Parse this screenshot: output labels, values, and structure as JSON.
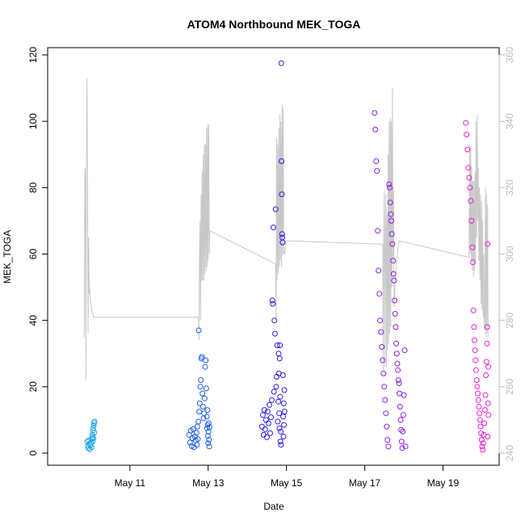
{
  "chart_data": {
    "type": "scatter",
    "title": "ATOM4 Northbound MEK_TOGA",
    "xlabel": "Date",
    "ylabel": "MEK_TOGA",
    "xlim": [
      "2019-05-09T04:00",
      "2019-05-20T04:00"
    ],
    "ylim": [
      0,
      120
    ],
    "y_ticks": [
      0,
      20,
      40,
      60,
      80,
      100,
      120
    ],
    "y2lim": [
      240,
      360
    ],
    "y2_ticks": [
      240,
      260,
      280,
      300,
      320,
      340,
      360
    ],
    "x_ticks": [
      {
        "value": "2019-05-11",
        "label": "May 11"
      },
      {
        "value": "2019-05-13",
        "label": "May 13"
      },
      {
        "value": "2019-05-15",
        "label": "May 15"
      },
      {
        "value": "2019-05-17",
        "label": "May 17"
      },
      {
        "value": "2019-05-19",
        "label": "May 19"
      }
    ],
    "grid": false,
    "legend": "none",
    "colors": {
      "may10": "#1ea7e8",
      "may12": "#1a60e8",
      "may14": "#2a1ee6",
      "may17": "#8a1de6",
      "may19": "#ee1ed6",
      "line": "#c8c8c8",
      "right_axis": "#bdbdbd"
    },
    "series": [
      {
        "group": "may10",
        "x": [
          "2019-05-09T21:50",
          "2019-05-09T22:10",
          "2019-05-09T22:30",
          "2019-05-09T22:50",
          "2019-05-09T23:10",
          "2019-05-09T23:30",
          "2019-05-09T23:50",
          "2019-05-10T00:10",
          "2019-05-10T00:30",
          "2019-05-10T00:45",
          "2019-05-10T00:50",
          "2019-05-10T01:00",
          "2019-05-10T01:10",
          "2019-05-10T01:20",
          "2019-05-10T01:30",
          "2019-05-10T01:40",
          "2019-05-10T01:50",
          "2019-05-10T02:00",
          "2019-05-10T02:10",
          "2019-05-10T02:20"
        ],
        "y": [
          3.5,
          2.2,
          1.5,
          3.8,
          2.8,
          1.2,
          2.4,
          3.1,
          1.8,
          4.2,
          4.8,
          5.5,
          3.5,
          6.8,
          7.5,
          4.5,
          8.4,
          9.1,
          6.2,
          9.5
        ]
      },
      {
        "group": "may12",
        "x": [
          "2019-05-12T12:20",
          "2019-05-12T12:50",
          "2019-05-12T13:20",
          "2019-05-12T13:50",
          "2019-05-12T14:20",
          "2019-05-12T14:50",
          "2019-05-12T15:20",
          "2019-05-12T15:50",
          "2019-05-12T16:20",
          "2019-05-12T16:50",
          "2019-05-12T17:10",
          "2019-05-12T17:20",
          "2019-05-12T17:40",
          "2019-05-12T18:00",
          "2019-05-12T18:10",
          "2019-05-12T18:30",
          "2019-05-12T18:50",
          "2019-05-12T19:10",
          "2019-05-12T19:30",
          "2019-05-12T19:50",
          "2019-05-12T20:10",
          "2019-05-12T20:30",
          "2019-05-12T20:50",
          "2019-05-12T21:10",
          "2019-05-12T21:30",
          "2019-05-12T21:50",
          "2019-05-12T22:10",
          "2019-05-12T22:30",
          "2019-05-12T22:50",
          "2019-05-12T23:10",
          "2019-05-12T23:20",
          "2019-05-12T23:30",
          "2019-05-12T23:40",
          "2019-05-12T23:50",
          "2019-05-13T00:00",
          "2019-05-13T00:10",
          "2019-05-13T00:20",
          "2019-05-13T00:30",
          "2019-05-13T00:40",
          "2019-05-13T00:50"
        ],
        "y": [
          5.5,
          3.2,
          6.8,
          2.1,
          4.5,
          7.2,
          1.8,
          5.0,
          3.8,
          6.1,
          2.5,
          8.0,
          4.2,
          9.5,
          37.0,
          12.5,
          15.0,
          20.0,
          22.0,
          28.5,
          29.0,
          18.0,
          14.0,
          10.5,
          12.0,
          16.5,
          26.0,
          28.0,
          19.5,
          11.0,
          7.5,
          13.0,
          8.5,
          5.2,
          3.0,
          6.5,
          9.0,
          4.0,
          2.0,
          7.8
        ]
      },
      {
        "group": "may14",
        "x": [
          "2019-05-14T09:00",
          "2019-05-14T09:30",
          "2019-05-14T10:00",
          "2019-05-14T10:30",
          "2019-05-14T11:00",
          "2019-05-14T11:30",
          "2019-05-14T12:00",
          "2019-05-14T12:30",
          "2019-05-14T13:00",
          "2019-05-14T13:30",
          "2019-05-14T14:00",
          "2019-05-14T14:30",
          "2019-05-14T15:00",
          "2019-05-14T15:20",
          "2019-05-14T15:40",
          "2019-05-14T16:00",
          "2019-05-14T16:20",
          "2019-05-14T16:40",
          "2019-05-14T17:00",
          "2019-05-14T17:20",
          "2019-05-14T17:40",
          "2019-05-14T18:00",
          "2019-05-14T18:20",
          "2019-05-14T18:40",
          "2019-05-14T19:00",
          "2019-05-14T19:10",
          "2019-05-14T19:20",
          "2019-05-14T19:30",
          "2019-05-14T19:40",
          "2019-05-14T19:50",
          "2019-05-14T20:00",
          "2019-05-14T20:10",
          "2019-05-14T20:20",
          "2019-05-14T20:30",
          "2019-05-14T20:40",
          "2019-05-14T20:50",
          "2019-05-14T21:00",
          "2019-05-14T21:10",
          "2019-05-14T21:20",
          "2019-05-14T21:30",
          "2019-05-14T21:40",
          "2019-05-14T21:50",
          "2019-05-14T22:00",
          "2019-05-14T22:10",
          "2019-05-14T22:20",
          "2019-05-14T22:30",
          "2019-05-14T22:40",
          "2019-05-14T22:50"
        ],
        "y": [
          8.0,
          11.5,
          5.5,
          13.0,
          7.2,
          10.0,
          4.8,
          12.5,
          9.0,
          14.5,
          6.0,
          10.8,
          16.0,
          46.0,
          45.0,
          68.0,
          18.5,
          40.0,
          36.0,
          73.5,
          20.0,
          23.0,
          32.5,
          9.5,
          15.5,
          30.0,
          24.0,
          12.0,
          7.5,
          28.5,
          32.5,
          17.0,
          3.5,
          6.5,
          2.5,
          117.5,
          88.0,
          78.0,
          66.0,
          65.0,
          63.5,
          23.5,
          11.0,
          5.0,
          15.0,
          8.5,
          19.0,
          12.5
        ]
      },
      {
        "group": "may17",
        "x": [
          "2019-05-17T06:00",
          "2019-05-17T06:30",
          "2019-05-17T07:00",
          "2019-05-17T07:30",
          "2019-05-17T08:00",
          "2019-05-17T08:30",
          "2019-05-17T09:00",
          "2019-05-17T09:30",
          "2019-05-17T10:00",
          "2019-05-17T10:30",
          "2019-05-17T11:00",
          "2019-05-17T11:30",
          "2019-05-17T12:00",
          "2019-05-17T12:30",
          "2019-05-17T13:00",
          "2019-05-17T13:30",
          "2019-05-17T14:00",
          "2019-05-17T14:30",
          "2019-05-17T15:00",
          "2019-05-17T15:20",
          "2019-05-17T15:40",
          "2019-05-17T16:00",
          "2019-05-17T16:20",
          "2019-05-17T16:40",
          "2019-05-17T17:00",
          "2019-05-17T17:20",
          "2019-05-17T17:40",
          "2019-05-17T18:00",
          "2019-05-17T18:20",
          "2019-05-17T18:40",
          "2019-05-17T19:00",
          "2019-05-17T19:20",
          "2019-05-17T19:40",
          "2019-05-17T20:00",
          "2019-05-17T20:20",
          "2019-05-17T20:40",
          "2019-05-17T21:00",
          "2019-05-17T21:20",
          "2019-05-17T21:40",
          "2019-05-17T22:00",
          "2019-05-17T22:20",
          "2019-05-17T22:40",
          "2019-05-17T23:00",
          "2019-05-17T23:20",
          "2019-05-17T23:40",
          "2019-05-18T00:00",
          "2019-05-18T00:30",
          "2019-05-18T01:00"
        ],
        "y": [
          102.5,
          97.5,
          88.0,
          85.0,
          67.0,
          55.0,
          48.0,
          40.0,
          36.5,
          32.0,
          28.0,
          24.0,
          20.0,
          16.0,
          12.0,
          8.0,
          4.0,
          2.0,
          81.0,
          80.0,
          75.5,
          72.0,
          70.0,
          66.0,
          63.0,
          58.0,
          54.0,
          52.0,
          46.0,
          42.0,
          38.0,
          33.0,
          30.0,
          27.0,
          25.0,
          22.0,
          21.0,
          18.0,
          14.0,
          10.0,
          7.0,
          3.5,
          1.5,
          6.5,
          11.5,
          17.5,
          31.0,
          2.0
        ]
      },
      {
        "group": "may19",
        "x": [
          "2019-05-19T14:00",
          "2019-05-19T14:30",
          "2019-05-19T15:00",
          "2019-05-19T15:30",
          "2019-05-19T16:00",
          "2019-05-19T16:30",
          "2019-05-19T17:00",
          "2019-05-19T17:30",
          "2019-05-19T18:00",
          "2019-05-19T18:20",
          "2019-05-19T18:40",
          "2019-05-19T19:00",
          "2019-05-19T19:20",
          "2019-05-19T19:40",
          "2019-05-19T20:00",
          "2019-05-19T20:20",
          "2019-05-19T20:40",
          "2019-05-19T21:00",
          "2019-05-19T21:20",
          "2019-05-19T21:40",
          "2019-05-19T22:00",
          "2019-05-19T22:20",
          "2019-05-19T22:40",
          "2019-05-19T23:00",
          "2019-05-19T23:20",
          "2019-05-19T23:40",
          "2019-05-20T00:00",
          "2019-05-20T00:20",
          "2019-05-20T00:40",
          "2019-05-20T01:00",
          "2019-05-20T01:20",
          "2019-05-20T01:40",
          "2019-05-20T02:00",
          "2019-05-20T02:20",
          "2019-05-20T02:40",
          "2019-05-20T03:00",
          "2019-05-20T03:10",
          "2019-05-20T03:20",
          "2019-05-20T03:30",
          "2019-05-20T03:40",
          "2019-05-20T03:50",
          "2019-05-20T03:55"
        ],
        "y": [
          99.5,
          96.0,
          91.5,
          86.0,
          83.0,
          80.0,
          76.0,
          70.0,
          62.0,
          57.5,
          43.0,
          38.0,
          34.0,
          31.0,
          28.0,
          25.0,
          22.0,
          20.0,
          18.0,
          16.0,
          14.0,
          12.0,
          10.0,
          8.0,
          6.0,
          4.0,
          2.0,
          1.0,
          3.0,
          5.5,
          9.0,
          13.0,
          17.5,
          23.5,
          27.5,
          33.0,
          38.0,
          63.0,
          5.0,
          15.0,
          26.0,
          11.5
        ]
      }
    ],
    "line": {
      "axis": "right",
      "x": [
        "2019-05-09T20:00",
        "2019-05-09T20:20",
        "2019-05-09T20:40",
        "2019-05-09T21:00",
        "2019-05-09T21:20",
        "2019-05-09T21:40",
        "2019-05-09T22:00",
        "2019-05-09T22:20",
        "2019-05-09T22:40",
        "2019-05-09T23:00",
        "2019-05-09T23:20",
        "2019-05-09T23:40",
        "2019-05-10T00:00",
        "2019-05-10T00:20",
        "2019-05-10T00:40",
        "2019-05-10T01:00",
        "2019-05-10T01:20",
        "2019-05-10T01:40",
        "2019-05-12T18:00",
        "2019-05-12T18:10",
        "2019-05-12T18:20",
        "2019-05-12T18:40",
        "2019-05-12T19:00",
        "2019-05-12T19:20",
        "2019-05-12T19:40",
        "2019-05-12T20:00",
        "2019-05-12T20:20",
        "2019-05-12T20:40",
        "2019-05-12T21:00",
        "2019-05-12T21:20",
        "2019-05-12T21:40",
        "2019-05-12T22:00",
        "2019-05-12T22:20",
        "2019-05-12T22:40",
        "2019-05-12T23:00",
        "2019-05-12T23:20",
        "2019-05-12T23:40",
        "2019-05-13T00:00",
        "2019-05-13T00:20",
        "2019-05-13T00:40",
        "2019-05-13T01:00",
        "2019-05-14T17:20",
        "2019-05-14T17:40",
        "2019-05-14T18:00",
        "2019-05-14T18:20",
        "2019-05-14T18:40",
        "2019-05-14T19:00",
        "2019-05-14T19:20",
        "2019-05-14T19:40",
        "2019-05-14T20:00",
        "2019-05-14T20:20",
        "2019-05-14T20:40",
        "2019-05-14T21:00",
        "2019-05-14T21:20",
        "2019-05-14T21:40",
        "2019-05-14T22:00",
        "2019-05-14T22:20",
        "2019-05-14T22:40",
        "2019-05-14T23:00",
        "2019-05-14T23:20",
        "2019-05-14T23:40",
        "2019-05-17T11:00",
        "2019-05-17T11:20",
        "2019-05-17T11:40",
        "2019-05-17T12:00",
        "2019-05-17T12:20",
        "2019-05-17T12:40",
        "2019-05-17T13:00",
        "2019-05-17T13:20",
        "2019-05-17T13:40",
        "2019-05-17T14:00",
        "2019-05-17T14:20",
        "2019-05-17T14:40",
        "2019-05-17T15:00",
        "2019-05-17T15:20",
        "2019-05-17T15:40",
        "2019-05-17T16:00",
        "2019-05-17T16:20",
        "2019-05-17T16:40",
        "2019-05-17T17:00",
        "2019-05-17T17:20",
        "2019-05-17T17:40",
        "2019-05-17T18:00",
        "2019-05-17T18:20",
        "2019-05-17T18:40",
        "2019-05-17T19:00",
        "2019-05-17T19:30",
        "2019-05-17T20:00",
        "2019-05-17T20:30",
        "2019-05-17T21:00",
        "2019-05-19T16:00",
        "2019-05-19T16:20",
        "2019-05-19T16:40",
        "2019-05-19T17:00",
        "2019-05-19T17:20",
        "2019-05-19T17:40",
        "2019-05-19T18:00",
        "2019-05-19T18:20",
        "2019-05-19T18:40",
        "2019-05-19T19:00",
        "2019-05-19T19:20",
        "2019-05-19T19:40",
        "2019-05-19T20:00",
        "2019-05-19T20:20",
        "2019-05-19T20:40",
        "2019-05-19T21:00",
        "2019-05-19T21:20",
        "2019-05-19T21:40",
        "2019-05-19T22:00",
        "2019-05-19T22:20",
        "2019-05-19T22:40",
        "2019-05-19T23:00",
        "2019-05-19T23:20",
        "2019-05-19T23:40",
        "2019-05-20T00:00",
        "2019-05-20T00:20",
        "2019-05-20T00:40",
        "2019-05-20T01:00",
        "2019-05-20T01:20",
        "2019-05-20T01:40",
        "2019-05-20T02:00",
        "2019-05-20T02:20",
        "2019-05-20T02:40",
        "2019-05-20T03:00",
        "2019-05-20T03:20",
        "2019-05-20T03:40"
      ],
      "y": [
        275,
        324,
        326,
        262,
        331,
        353,
        325,
        276,
        305,
        288,
        290,
        286,
        285,
        284,
        283,
        282,
        282,
        281,
        281,
        280,
        274,
        300,
        310,
        280,
        318,
        292,
        325,
        292,
        330,
        292,
        333,
        294,
        333,
        295,
        338,
        296,
        339,
        298,
        339,
        300,
        307,
        297,
        280,
        335,
        292,
        333,
        294,
        338,
        296,
        342,
        298,
        340,
        296,
        345,
        300,
        344,
        300,
        301,
        300,
        302,
        304,
        303,
        265,
        304,
        319,
        266,
        302,
        318,
        266,
        312,
        271,
        330,
        273,
        340,
        276,
        341,
        278,
        340,
        290,
        350,
        298,
        320,
        284,
        287,
        291,
        294,
        297,
        300,
        302,
        304,
        299,
        333,
        300,
        332,
        298,
        326,
        295,
        322,
        293,
        322,
        295,
        325,
        298,
        340,
        305,
        342,
        310,
        326,
        298,
        320,
        292,
        318,
        285,
        316,
        283,
        310,
        281,
        300,
        277,
        280,
        320,
        275,
        318,
        276,
        315,
        275
      ]
    }
  }
}
